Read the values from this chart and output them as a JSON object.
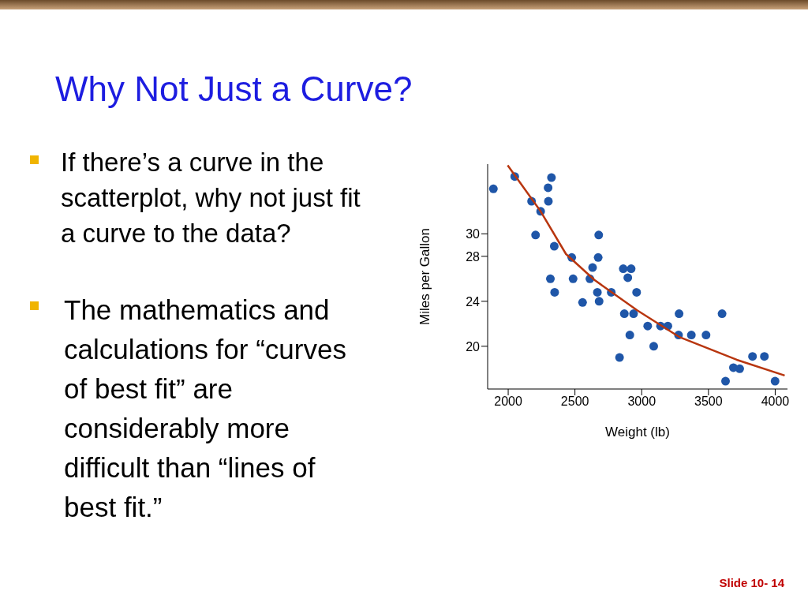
{
  "chart_data": {
    "type": "scatter",
    "title": "Why Not Just a Curve?",
    "annotations": [
      "If there’s a curve in the scatterplot, why not just fit a curve to the data?",
      "The mathematics and calculations for “curves of best fit” are considerably more difficult than “lines of best fit.”",
      "Slide 10- 14"
    ],
    "xlabel": "Weight (lb)",
    "ylabel": "Miles per Gallon",
    "xlim": [
      1846,
      4092
    ],
    "xticks": [
      2000,
      2500,
      3000,
      3500,
      4000
    ],
    "ylim": [
      16.2,
      36.2
    ],
    "yticks": [
      30,
      28,
      24,
      20
    ],
    "series": [
      {
        "type": "scatter",
        "marker": "circle",
        "color": "#1f56a8",
        "x": [
          1889,
          2049,
          2324,
          2299,
          2175,
          2301,
          2243,
          2205,
          2678,
          2345,
          2476,
          2674,
          2632,
          2862,
          2921,
          2896,
          2316,
          2486,
          2612,
          2348,
          2668,
          2772,
          2962,
          2557,
          2681,
          2870,
          2939,
          3280,
          3602,
          3045,
          3141,
          3196,
          2911,
          3276,
          3372,
          3482,
          3090,
          2834,
          3830,
          3919,
          3687,
          3734,
          3628,
          3999
        ],
        "values": [
          34.0,
          35.1,
          35.0,
          34.1,
          32.9,
          32.9,
          32.0,
          29.9,
          29.9,
          28.9,
          27.9,
          27.9,
          27.0,
          26.9,
          26.9,
          26.1,
          26.0,
          26.0,
          26.0,
          24.8,
          24.8,
          24.8,
          24.8,
          23.9,
          24.0,
          22.9,
          22.9,
          22.9,
          22.9,
          21.8,
          21.8,
          21.8,
          21.0,
          21.0,
          21.0,
          21.0,
          20.0,
          19.0,
          19.1,
          19.1,
          18.1,
          18.0,
          16.9,
          16.9
        ]
      },
      {
        "type": "line",
        "marker": "none",
        "color": "#b8360f",
        "x": [
          1996,
          2243,
          2433,
          2646,
          2966,
          3286,
          3712,
          4071
        ],
        "values": [
          36.1,
          32.0,
          28.2,
          25.9,
          23.2,
          20.8,
          18.8,
          17.4
        ]
      }
    ]
  }
}
